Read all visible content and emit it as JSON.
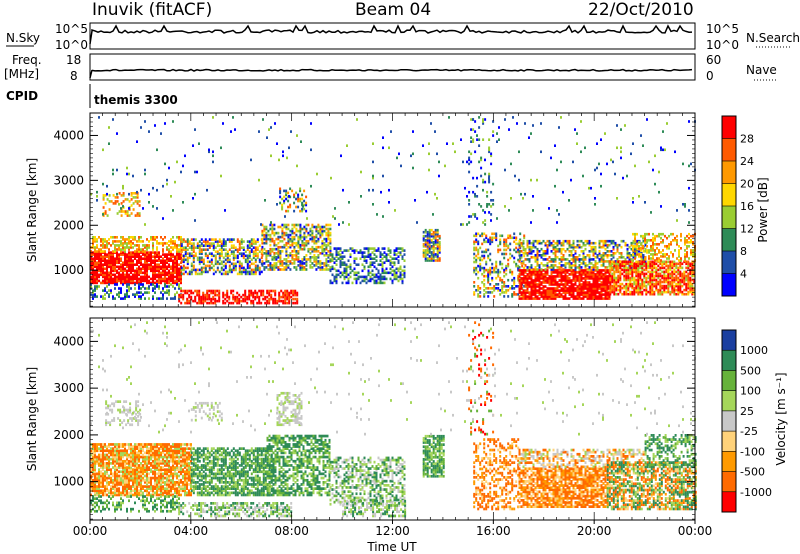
{
  "header": {
    "station": "Inuvik (fitACF)",
    "beam": "Beam 04",
    "date": "22/Oct/2010"
  },
  "top_panels": {
    "nsky_label": "N.Sky",
    "nsky_ticks": [
      "10^5",
      "10^0"
    ],
    "nsearch_label": "N.Search",
    "nsearch_ticks": [
      "10^5",
      "10^0"
    ],
    "freq_label": "Freq.",
    "freq_unit": "[MHz]",
    "freq_ticks": [
      "18",
      "8"
    ],
    "nave_label": "Nave",
    "nave_ticks": [
      "60",
      "0"
    ],
    "cpid_label": "CPID",
    "cpid_value": "themis 3300"
  },
  "chart_data": [
    {
      "type": "heatmap",
      "name": "power-panel",
      "ylabel": "Slant Range [km]",
      "y_ticks": [
        "4000",
        "3000",
        "2000",
        "1000"
      ],
      "ylim": [
        180,
        4500
      ],
      "xlim_hours": [
        0,
        24
      ],
      "colorbar": {
        "label": "Power [dB]",
        "ticks": [
          "28",
          "24",
          "20",
          "16",
          "12",
          "8",
          "4"
        ],
        "colors": [
          "#ff0000",
          "#ff5a00",
          "#ff9900",
          "#ffd700",
          "#9acd32",
          "#2e8b57",
          "#1f4ea8",
          "#0000ff"
        ]
      }
    },
    {
      "type": "heatmap",
      "name": "velocity-panel",
      "ylabel": "Slant Range [km]",
      "y_ticks": [
        "4000",
        "3000",
        "2000",
        "1000"
      ],
      "ylim": [
        180,
        4500
      ],
      "xlim_hours": [
        0,
        24
      ],
      "colorbar": {
        "label": "Velocity [m s⁻¹]",
        "ticks": [
          "1000",
          "500",
          "100",
          "25",
          "-25",
          "-100",
          "-500",
          "-1000"
        ],
        "colors": [
          "#1a3fa0",
          "#2e8b57",
          "#66b23a",
          "#a5d65a",
          "#c8c8c8",
          "#ffd27a",
          "#ff9a00",
          "#ff6a00",
          "#ff0000"
        ]
      }
    }
  ],
  "x_axis": {
    "ticks": [
      "00:00",
      "04:00",
      "08:00",
      "12:00",
      "16:00",
      "20:00",
      "00:00"
    ],
    "label": "Time UT"
  }
}
